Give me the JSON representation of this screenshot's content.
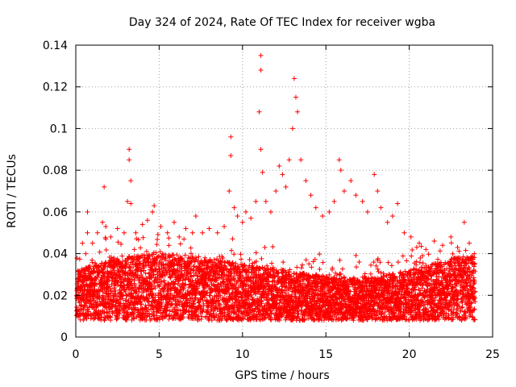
{
  "chart_data": {
    "type": "scatter",
    "title": "Day 324 of 2024, Rate Of TEC Index for receiver wgba",
    "xlabel": "GPS time / hours",
    "ylabel": "ROTI / TECUs",
    "xlim": [
      0,
      25
    ],
    "ylim": [
      0,
      0.14
    ],
    "x_ticks": [
      "0",
      "5",
      "10",
      "15",
      "20",
      "25"
    ],
    "y_ticks": [
      "0",
      "0.02",
      "0.04",
      "0.06",
      "0.08",
      "0.1",
      "0.12",
      "0.14"
    ],
    "grid": true,
    "marker": "+",
    "color": "#ff0000",
    "series": [
      {
        "name": "ROTI",
        "note": "dense band of values roughly 0.005–0.045 TECU over 0–24 h; notable peaks listed as x (hours), y (TECU)",
        "points": [
          [
            0.2,
            0.03
          ],
          [
            0.4,
            0.045
          ],
          [
            0.6,
            0.04
          ],
          [
            0.7,
            0.05
          ],
          [
            0.7,
            0.06
          ],
          [
            1.0,
            0.045
          ],
          [
            1.3,
            0.05
          ],
          [
            1.6,
            0.055
          ],
          [
            1.7,
            0.072
          ],
          [
            1.8,
            0.053
          ],
          [
            2.1,
            0.048
          ],
          [
            2.5,
            0.052
          ],
          [
            2.9,
            0.05
          ],
          [
            3.1,
            0.065
          ],
          [
            3.2,
            0.085
          ],
          [
            3.2,
            0.09
          ],
          [
            3.3,
            0.075
          ],
          [
            3.3,
            0.064
          ],
          [
            3.6,
            0.05
          ],
          [
            4.0,
            0.054
          ],
          [
            4.3,
            0.056
          ],
          [
            4.6,
            0.06
          ],
          [
            4.7,
            0.063
          ],
          [
            5.1,
            0.053
          ],
          [
            5.5,
            0.05
          ],
          [
            5.9,
            0.055
          ],
          [
            6.2,
            0.048
          ],
          [
            6.6,
            0.052
          ],
          [
            7.0,
            0.05
          ],
          [
            7.2,
            0.058
          ],
          [
            7.6,
            0.05
          ],
          [
            8.0,
            0.052
          ],
          [
            8.5,
            0.05
          ],
          [
            8.9,
            0.053
          ],
          [
            9.2,
            0.07
          ],
          [
            9.3,
            0.096
          ],
          [
            9.3,
            0.087
          ],
          [
            9.5,
            0.062
          ],
          [
            9.7,
            0.058
          ],
          [
            10.0,
            0.055
          ],
          [
            10.2,
            0.06
          ],
          [
            10.5,
            0.057
          ],
          [
            10.8,
            0.065
          ],
          [
            11.0,
            0.108
          ],
          [
            11.1,
            0.135
          ],
          [
            11.1,
            0.128
          ],
          [
            11.1,
            0.09
          ],
          [
            11.2,
            0.079
          ],
          [
            11.4,
            0.065
          ],
          [
            11.7,
            0.06
          ],
          [
            12.0,
            0.07
          ],
          [
            12.2,
            0.082
          ],
          [
            12.4,
            0.078
          ],
          [
            12.6,
            0.072
          ],
          [
            12.8,
            0.085
          ],
          [
            13.0,
            0.1
          ],
          [
            13.1,
            0.124
          ],
          [
            13.2,
            0.115
          ],
          [
            13.3,
            0.108
          ],
          [
            13.5,
            0.085
          ],
          [
            13.8,
            0.075
          ],
          [
            14.1,
            0.068
          ],
          [
            14.4,
            0.062
          ],
          [
            14.8,
            0.058
          ],
          [
            15.2,
            0.06
          ],
          [
            15.5,
            0.065
          ],
          [
            15.8,
            0.085
          ],
          [
            15.9,
            0.08
          ],
          [
            16.1,
            0.07
          ],
          [
            16.5,
            0.075
          ],
          [
            16.8,
            0.068
          ],
          [
            17.2,
            0.065
          ],
          [
            17.5,
            0.06
          ],
          [
            17.9,
            0.078
          ],
          [
            18.1,
            0.07
          ],
          [
            18.3,
            0.062
          ],
          [
            18.7,
            0.055
          ],
          [
            19.0,
            0.058
          ],
          [
            19.3,
            0.064
          ],
          [
            19.7,
            0.05
          ],
          [
            20.1,
            0.048
          ],
          [
            20.6,
            0.045
          ],
          [
            21.0,
            0.042
          ],
          [
            21.5,
            0.046
          ],
          [
            22.0,
            0.044
          ],
          [
            22.5,
            0.048
          ],
          [
            22.9,
            0.043
          ],
          [
            23.3,
            0.055
          ],
          [
            23.6,
            0.045
          ],
          [
            23.9,
            0.04
          ]
        ]
      }
    ]
  }
}
